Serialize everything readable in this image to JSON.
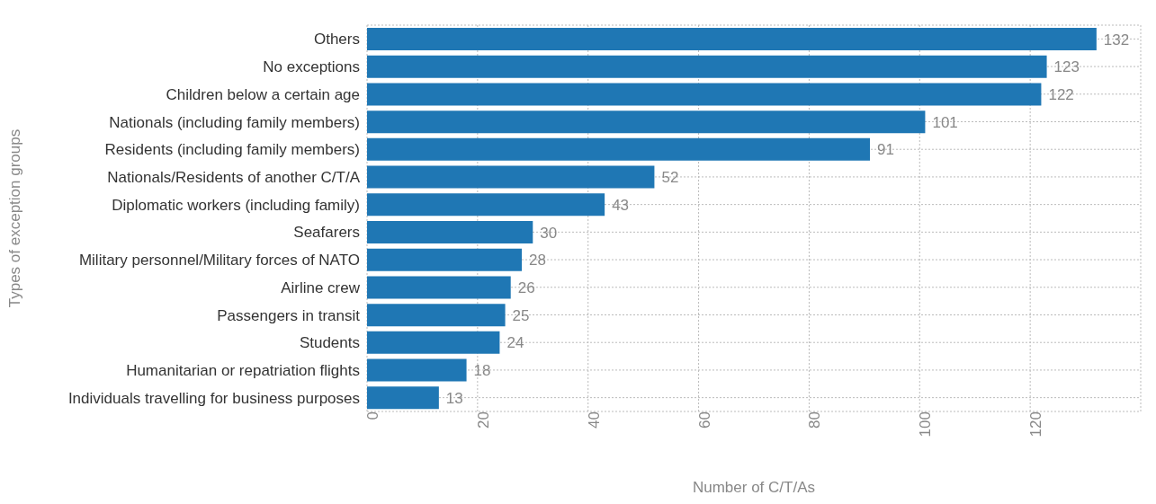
{
  "chart_data": {
    "type": "bar",
    "orientation": "horizontal",
    "xlabel": "Number of C/T/As",
    "ylabel": "Types of exception groups",
    "categories": [
      "Others",
      "No exceptions",
      "Children below a certain age",
      "Nationals (including family members)",
      "Residents (including family members)",
      "Nationals/Residents of another C/T/A",
      "Diplomatic workers (including family)",
      "Seafarers",
      "Military personnel/Military forces of NATO",
      "Airline crew",
      "Passengers in transit",
      "Students",
      "Humanitarian or repatriation flights",
      "Individuals travelling for business purposes"
    ],
    "values": [
      132,
      123,
      122,
      101,
      91,
      52,
      43,
      30,
      28,
      26,
      25,
      24,
      18,
      13
    ],
    "color": "#1f77b4",
    "xlim": [
      0,
      140
    ],
    "xticks": [
      0,
      20,
      40,
      60,
      80,
      100,
      120
    ],
    "grid": true,
    "data_labels": true,
    "legend": false
  }
}
